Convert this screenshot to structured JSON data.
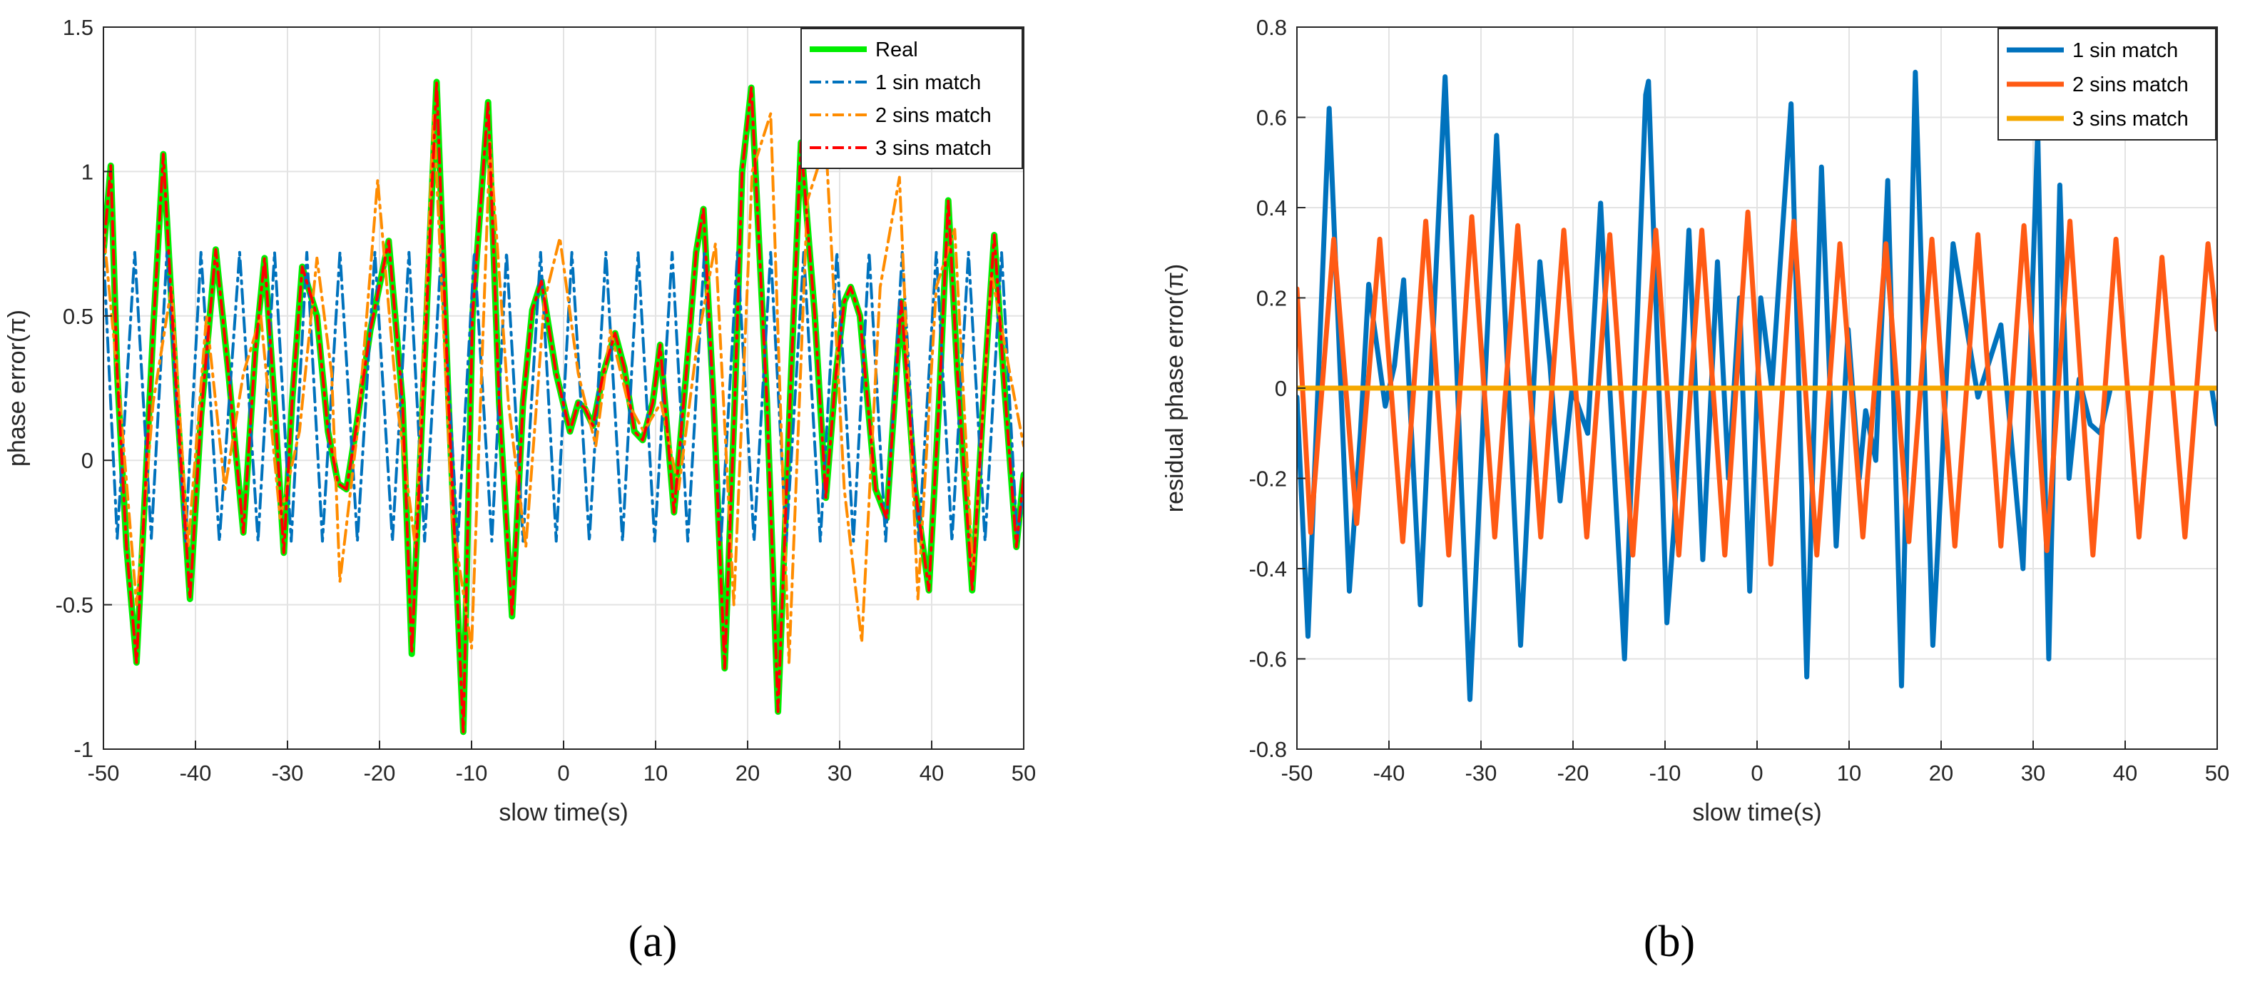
{
  "figure": {
    "captions": [
      "(a)",
      "(b)"
    ]
  },
  "chart_data": [
    {
      "type": "line",
      "title": "",
      "xlabel": "slow time(s)",
      "ylabel": "phase error(π)",
      "xlim": [
        -50,
        50
      ],
      "ylim": [
        -1,
        1.5
      ],
      "xticks": [
        -50,
        -40,
        -30,
        -20,
        -10,
        0,
        10,
        20,
        30,
        40,
        50
      ],
      "yticks": [
        -1,
        -0.5,
        0,
        0.5,
        1,
        1.5
      ],
      "xtick_labels": [
        "-50",
        "-40",
        "-30",
        "-20",
        "-10",
        "0",
        "10",
        "20",
        "30",
        "40",
        "50"
      ],
      "ytick_labels": [
        "-1",
        "-0.5",
        "0",
        "0.5",
        "1",
        "1.5"
      ],
      "grid": true,
      "legend_position": "top-right",
      "series": [
        {
          "name": "Real",
          "color": "#00ee00",
          "style": "solid",
          "x": [
            -50,
            -49.2,
            -48.5,
            -47.5,
            -46.4,
            -44.6,
            -43.5,
            -42,
            -40.6,
            -39.4,
            -37.8,
            -36.4,
            -34.8,
            -33.5,
            -32.5,
            -31.4,
            -30.4,
            -29.5,
            -28.4,
            -26.8,
            -25.6,
            -24.5,
            -23.6,
            -22.5,
            -21,
            -19,
            -17.5,
            -16.5,
            -15.3,
            -13.8,
            -12.5,
            -10.9,
            -9.9,
            -8.2,
            -7,
            -5.6,
            -4.4,
            -3.4,
            -2.4,
            -0.8,
            0.7,
            1.6,
            2.3,
            3.2,
            4.3,
            5.6,
            6.6,
            7.7,
            8.6,
            9.7,
            10.5,
            12,
            13.6,
            14.4,
            15.2,
            16.3,
            17.5,
            18.6,
            19.4,
            20.4,
            22.1,
            23.3,
            24.6,
            25.8,
            27.3,
            28.5,
            29.6,
            30.5,
            31.2,
            32.2,
            33.9,
            35.1,
            36.7,
            38.2,
            39.7,
            40.8,
            41.8,
            42.8,
            44.4,
            45.8,
            46.8,
            47.8,
            49.2,
            50
          ],
          "y": [
            0.72,
            1.02,
            0.3,
            -0.3,
            -0.7,
            0.45,
            1.06,
            0.2,
            -0.48,
            0.15,
            0.73,
            0.3,
            -0.25,
            0.38,
            0.7,
            0.2,
            -0.32,
            0.2,
            0.67,
            0.5,
            0.1,
            -0.08,
            -0.1,
            0.12,
            0.45,
            0.76,
            0.2,
            -0.67,
            0.2,
            1.31,
            0.2,
            -0.94,
            0.5,
            1.24,
            0.2,
            -0.54,
            0.2,
            0.52,
            0.62,
            0.3,
            0.1,
            0.2,
            0.18,
            0.12,
            0.3,
            0.44,
            0.32,
            0.1,
            0.07,
            0.2,
            0.4,
            -0.18,
            0.4,
            0.72,
            0.87,
            0.2,
            -0.72,
            0.2,
            1.0,
            1.29,
            0.2,
            -0.87,
            0.2,
            1.1,
            0.5,
            -0.13,
            0.3,
            0.55,
            0.6,
            0.5,
            -0.1,
            -0.2,
            0.55,
            -0.1,
            -0.45,
            0.2,
            0.9,
            0.3,
            -0.45,
            0.3,
            0.78,
            0.3,
            -0.3,
            -0.05
          ]
        },
        {
          "name": "1 sin match",
          "color": "#0072bd",
          "style": "dashdot",
          "x": [
            -50,
            -48.5,
            -46.6,
            -44.8,
            -43.1,
            -41.1,
            -39.4,
            -37.4,
            -35.2,
            -33.2,
            -31.4,
            -29.6,
            -27.9,
            -26.2,
            -24.3,
            -22.4,
            -20.5,
            -18.6,
            -16.8,
            -15.1,
            -13.3,
            -11.5,
            -9.7,
            -7.8,
            -6.2,
            -4.4,
            -2.5,
            -0.8,
            0.9,
            2.8,
            4.6,
            6.4,
            8.1,
            9.9,
            11.8,
            13.5,
            15.3,
            17.1,
            18.9,
            20.7,
            22.5,
            24.2,
            26.1,
            27.9,
            29.7,
            31.5,
            33.2,
            35,
            36.8,
            38.6,
            40.5,
            42.2,
            44,
            45.8,
            47.6,
            49.3,
            50
          ],
          "y": [
            0.72,
            -0.27,
            0.72,
            -0.27,
            0.72,
            -0.28,
            0.72,
            -0.28,
            0.72,
            -0.28,
            0.72,
            -0.28,
            0.72,
            -0.28,
            0.72,
            -0.28,
            0.72,
            -0.28,
            0.72,
            -0.28,
            0.72,
            -0.28,
            0.72,
            -0.28,
            0.72,
            -0.28,
            0.72,
            -0.28,
            0.72,
            -0.28,
            0.72,
            -0.28,
            0.72,
            -0.28,
            0.72,
            -0.28,
            0.72,
            -0.28,
            0.72,
            -0.28,
            0.72,
            -0.28,
            0.72,
            -0.28,
            0.72,
            -0.28,
            0.72,
            -0.28,
            0.72,
            -0.28,
            0.72,
            -0.28,
            0.72,
            -0.28,
            0.72,
            -0.28,
            -0.1
          ]
        },
        {
          "name": "2 sins match",
          "color": "#ff8c00",
          "style": "dashdot",
          "x": [
            -50,
            -48.2,
            -46.4,
            -44.6,
            -42.6,
            -40.8,
            -38.8,
            -36.8,
            -34.8,
            -32.9,
            -30.8,
            -28.7,
            -26.8,
            -25.2,
            -24.3,
            -22.4,
            -20.2,
            -18.1,
            -16.1,
            -14.1,
            -12.1,
            -10,
            -8,
            -6,
            -4.1,
            -2.1,
            -0.4,
            1.6,
            3.5,
            5.1,
            7,
            8.7,
            10.6,
            12.5,
            14.5,
            16.5,
            18.5,
            20.5,
            22.5,
            24.5,
            26.5,
            28.5,
            30.5,
            32.4,
            34.4,
            36.5,
            38.5,
            40.5,
            42.5,
            44.5,
            46.5,
            48.5,
            50
          ],
          "y": [
            0.8,
            0.2,
            -0.5,
            0.2,
            0.6,
            -0.3,
            0.5,
            -0.1,
            0.3,
            0.5,
            -0.2,
            0.1,
            0.7,
            0.3,
            -0.42,
            0.1,
            0.97,
            0.2,
            -0.3,
            1.2,
            -0.2,
            -0.65,
            1.1,
            0.2,
            -0.3,
            0.55,
            0.77,
            0.3,
            0.05,
            0.45,
            0.2,
            0.1,
            0.2,
            -0.1,
            0.4,
            0.75,
            -0.5,
            1.0,
            1.2,
            -0.7,
            0.9,
            1.1,
            -0.1,
            -0.63,
            0.6,
            0.98,
            -0.48,
            0.6,
            0.8,
            -0.4,
            0.65,
            0.3,
            0.05
          ]
        },
        {
          "name": "3 sins match",
          "color": "#ff0000",
          "style": "dashdot",
          "x": [
            -50,
            -49.2,
            -48.5,
            -47.5,
            -46.4,
            -44.6,
            -43.5,
            -42,
            -40.6,
            -39.4,
            -37.8,
            -36.4,
            -34.8,
            -33.5,
            -32.5,
            -31.4,
            -30.4,
            -29.5,
            -28.4,
            -26.8,
            -25.6,
            -24.5,
            -23.6,
            -22.5,
            -21,
            -19,
            -17.5,
            -16.5,
            -15.3,
            -13.8,
            -12.5,
            -10.9,
            -9.9,
            -8.2,
            -7,
            -5.6,
            -4.4,
            -3.4,
            -2.4,
            -0.8,
            0.7,
            1.6,
            2.3,
            3.2,
            4.3,
            5.6,
            6.6,
            7.7,
            8.6,
            9.7,
            10.5,
            12,
            13.6,
            14.4,
            15.2,
            16.3,
            17.5,
            18.6,
            19.4,
            20.4,
            22.1,
            23.3,
            24.6,
            25.8,
            27.3,
            28.5,
            29.6,
            30.5,
            31.2,
            32.2,
            33.9,
            35.1,
            36.7,
            38.2,
            39.7,
            40.8,
            41.8,
            42.8,
            44.4,
            45.8,
            46.8,
            47.8,
            49.2,
            50
          ],
          "y": [
            0.72,
            1.02,
            0.3,
            -0.3,
            -0.7,
            0.45,
            1.06,
            0.2,
            -0.48,
            0.15,
            0.73,
            0.3,
            -0.25,
            0.38,
            0.7,
            0.2,
            -0.32,
            0.2,
            0.67,
            0.5,
            0.1,
            -0.08,
            -0.1,
            0.12,
            0.45,
            0.76,
            0.2,
            -0.67,
            0.2,
            1.31,
            0.2,
            -0.94,
            0.5,
            1.24,
            0.2,
            -0.54,
            0.2,
            0.52,
            0.62,
            0.3,
            0.1,
            0.2,
            0.18,
            0.12,
            0.3,
            0.44,
            0.32,
            0.1,
            0.07,
            0.2,
            0.4,
            -0.18,
            0.4,
            0.72,
            0.87,
            0.2,
            -0.72,
            0.2,
            1.0,
            1.29,
            0.2,
            -0.87,
            0.2,
            1.1,
            0.5,
            -0.13,
            0.3,
            0.55,
            0.6,
            0.5,
            -0.1,
            -0.2,
            0.55,
            -0.1,
            -0.45,
            0.2,
            0.9,
            0.3,
            -0.45,
            0.3,
            0.78,
            0.3,
            -0.3,
            -0.05
          ]
        }
      ]
    },
    {
      "type": "line",
      "title": "",
      "xlabel": "slow time(s)",
      "ylabel": "residual phase error(π)",
      "xlim": [
        -50,
        50
      ],
      "ylim": [
        -0.8,
        0.8
      ],
      "xticks": [
        -50,
        -40,
        -30,
        -20,
        -10,
        0,
        10,
        20,
        30,
        40,
        50
      ],
      "yticks": [
        -0.8,
        -0.6,
        -0.4,
        -0.2,
        0,
        0.2,
        0.4,
        0.6,
        0.8
      ],
      "xtick_labels": [
        "-50",
        "-40",
        "-30",
        "-20",
        "-10",
        "0",
        "10",
        "20",
        "30",
        "40",
        "50"
      ],
      "ytick_labels": [
        "-0.8",
        "-0.6",
        "-0.4",
        "-0.2",
        "0",
        "0.2",
        "0.4",
        "0.6",
        "0.8"
      ],
      "grid": true,
      "legend_position": "top-right",
      "series": [
        {
          "name": "1 sin match",
          "color": "#0072bd",
          "style": "solid",
          "x": [
            -50,
            -48.8,
            -46.5,
            -44.3,
            -43.1,
            -42.2,
            -41.7,
            -40.4,
            -39.4,
            -38.4,
            -36.6,
            -33.9,
            -31.2,
            -28.3,
            -25.7,
            -23.6,
            -22.5,
            -21.4,
            -20.1,
            -18.4,
            -17,
            -16,
            -14.4,
            -12.1,
            -11.8,
            -9.8,
            -9,
            -7.4,
            -5.9,
            -4.3,
            -3.1,
            -1.9,
            -0.8,
            0.4,
            1.6,
            3.7,
            5.4,
            7,
            8.6,
            9.9,
            11.1,
            11.8,
            12.9,
            14.2,
            15.7,
            17.2,
            19.1,
            21.3,
            24,
            26.5,
            28.9,
            30.5,
            31.7,
            32.9,
            33.9,
            35,
            36.2,
            37.3,
            38.4,
            39.4,
            41.2,
            43.4,
            45.2,
            46.6,
            48.4,
            49.4,
            50
          ],
          "y": [
            -0.02,
            -0.55,
            0.62,
            -0.45,
            -0.1,
            0.23,
            0.15,
            -0.04,
            0.05,
            0.24,
            -0.48,
            0.69,
            -0.69,
            0.56,
            -0.57,
            0.28,
            0.05,
            -0.25,
            0.0,
            -0.1,
            0.41,
            0.0,
            -0.6,
            0.65,
            0.68,
            -0.52,
            -0.3,
            0.35,
            -0.38,
            0.28,
            -0.2,
            0.2,
            -0.45,
            0.2,
            0.0,
            0.63,
            -0.64,
            0.49,
            -0.35,
            0.13,
            -0.2,
            -0.05,
            -0.16,
            0.46,
            -0.66,
            0.7,
            -0.57,
            0.32,
            -0.02,
            0.14,
            -0.4,
            0.57,
            -0.6,
            0.45,
            -0.2,
            0.02,
            -0.08,
            -0.1,
            0.0,
            0.0,
            0.0,
            0.0,
            0.0,
            0.0,
            0.0,
            0.0,
            -0.08
          ]
        },
        {
          "name": "2 sins match",
          "color": "#ff5a14",
          "style": "solid",
          "x": [
            -50,
            -48.5,
            -46,
            -43.5,
            -41,
            -38.5,
            -36,
            -33.5,
            -31,
            -28.5,
            -26,
            -23.5,
            -21,
            -18.5,
            -16,
            -13.5,
            -11,
            -8.5,
            -6,
            -3.5,
            -1,
            1.5,
            4,
            6.5,
            9,
            11.5,
            14,
            16.5,
            19,
            21.5,
            24,
            26.5,
            29,
            31.5,
            34,
            36.5,
            39,
            41.5,
            44,
            46.5,
            49,
            50
          ],
          "y": [
            0.22,
            -0.32,
            0.33,
            -0.3,
            0.33,
            -0.34,
            0.37,
            -0.37,
            0.38,
            -0.33,
            0.36,
            -0.33,
            0.35,
            -0.33,
            0.34,
            -0.37,
            0.35,
            -0.37,
            0.35,
            -0.37,
            0.39,
            -0.39,
            0.37,
            -0.37,
            0.32,
            -0.33,
            0.32,
            -0.34,
            0.33,
            -0.35,
            0.34,
            -0.35,
            0.36,
            -0.36,
            0.37,
            -0.37,
            0.33,
            -0.33,
            0.29,
            -0.33,
            0.32,
            0.13
          ]
        },
        {
          "name": "3 sins match",
          "color": "#f5a800",
          "style": "solid",
          "x": [
            -50,
            50
          ],
          "y": [
            0,
            0
          ]
        }
      ]
    }
  ]
}
